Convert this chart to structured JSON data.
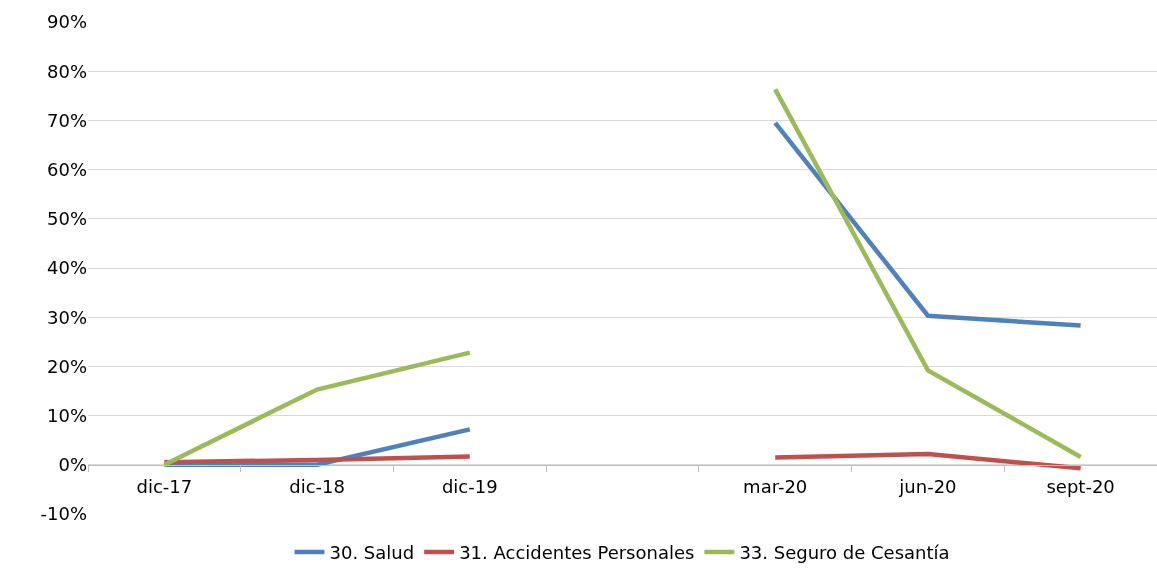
{
  "chart_data": {
    "type": "line",
    "categories": [
      "dic-17",
      "dic-18",
      "dic-19",
      null,
      "mar-20",
      "jun-20",
      "sept-20"
    ],
    "series": [
      {
        "name": "30. Salud",
        "color": "#4f81bd",
        "values": [
          0,
          0,
          7.2,
          null,
          69.5,
          30.3,
          28.3
        ]
      },
      {
        "name": "31. Accidentes Personales",
        "color": "#c0504d",
        "values": [
          0.5,
          1.0,
          1.7,
          null,
          1.5,
          2.2,
          -0.7
        ]
      },
      {
        "name": "33. Seguro de Cesantía",
        "color": "#9bbb59",
        "values": [
          0,
          15.3,
          22.8,
          null,
          76.3,
          19.2,
          1.6
        ]
      }
    ],
    "ylim": [
      -10,
      90
    ],
    "yticks": [
      {
        "value": -10,
        "label": "-10%"
      },
      {
        "value": 0,
        "label": "0%"
      },
      {
        "value": 10,
        "label": "10%"
      },
      {
        "value": 20,
        "label": "20%"
      },
      {
        "value": 30,
        "label": "30%"
      },
      {
        "value": 40,
        "label": "40%"
      },
      {
        "value": 50,
        "label": "50%"
      },
      {
        "value": 60,
        "label": "60%"
      },
      {
        "value": 70,
        "label": "70%"
      },
      {
        "value": 80,
        "label": "80%"
      },
      {
        "value": 90,
        "label": "90%"
      }
    ],
    "grid": "y",
    "legend": "bottom",
    "marker": "none",
    "line_style": "solid"
  }
}
